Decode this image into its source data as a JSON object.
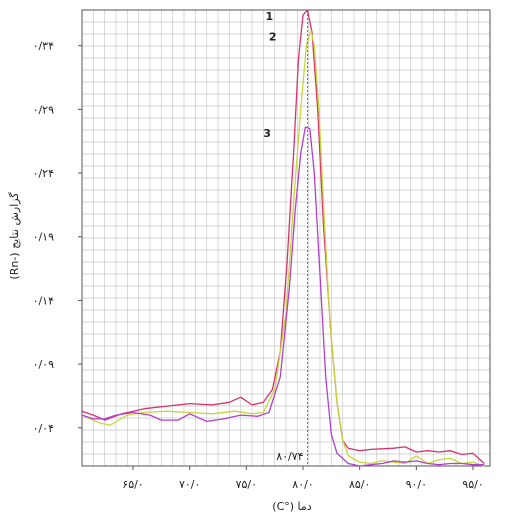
{
  "chart_data": {
    "type": "line",
    "xlabel": "دما (°C)",
    "ylabel": "گزارش نتایج (-Rn)",
    "xlim": [
      60.5,
      96.5
    ],
    "ylim": [
      0.01,
      0.368
    ],
    "grid": true,
    "x_ticks": [
      {
        "value": 65,
        "label": "۶۵/۰"
      },
      {
        "value": 70,
        "label": "۷۰/۰"
      },
      {
        "value": 75,
        "label": "۷۵/۰"
      },
      {
        "value": 80,
        "label": "۸۰/۰"
      },
      {
        "value": 85,
        "label": "۸۵/۰"
      },
      {
        "value": 90,
        "label": "۹۰/۰"
      },
      {
        "value": 95,
        "label": "۹۵/۰"
      }
    ],
    "y_ticks": [
      {
        "value": 0.04,
        "label": "۰/۰۴"
      },
      {
        "value": 0.09,
        "label": "۰/۰۹"
      },
      {
        "value": 0.14,
        "label": "۰/۱۴"
      },
      {
        "value": 0.19,
        "label": "۰/۱۹"
      },
      {
        "value": 0.24,
        "label": "۰/۲۴"
      },
      {
        "value": 0.29,
        "label": "۰/۲۹"
      },
      {
        "value": 0.34,
        "label": "۰/۳۴"
      }
    ],
    "peak_marker": {
      "x": 80.4,
      "label": "۸۰/۷۴"
    },
    "series": [
      {
        "label": "1",
        "color": "#d6336c",
        "x": [
          60.5,
          61.5,
          62.5,
          64,
          66,
          68,
          70,
          72,
          73.5,
          74.5,
          75.5,
          76.5,
          77.3,
          78,
          78.6,
          79.2,
          79.6,
          80,
          80.4,
          80.8,
          81.3,
          81.8,
          82.5,
          83,
          83.5,
          84,
          85,
          86,
          88,
          89,
          90,
          91,
          92,
          93,
          94,
          95,
          96
        ],
        "y": [
          0.053,
          0.05,
          0.046,
          0.051,
          0.055,
          0.057,
          0.059,
          0.058,
          0.06,
          0.064,
          0.058,
          0.06,
          0.07,
          0.1,
          0.17,
          0.26,
          0.33,
          0.364,
          0.368,
          0.35,
          0.29,
          0.2,
          0.11,
          0.06,
          0.03,
          0.024,
          0.022,
          0.023,
          0.024,
          0.025,
          0.021,
          0.022,
          0.021,
          0.022,
          0.019,
          0.02,
          0.012
        ]
      },
      {
        "label": "2",
        "color": "#c5d63c",
        "x": [
          60.5,
          62,
          63,
          64.5,
          66,
          68,
          70,
          72,
          74,
          75.5,
          76.5,
          77.5,
          78.5,
          79.2,
          79.8,
          80.3,
          80.7,
          81,
          81.4,
          81.9,
          82.4,
          83,
          83.5,
          84,
          85,
          86,
          87,
          88,
          89,
          90,
          91,
          92,
          93,
          94,
          95,
          96
        ],
        "y": [
          0.05,
          0.044,
          0.042,
          0.05,
          0.052,
          0.053,
          0.052,
          0.051,
          0.053,
          0.051,
          0.052,
          0.07,
          0.13,
          0.22,
          0.29,
          0.34,
          0.352,
          0.34,
          0.29,
          0.2,
          0.12,
          0.06,
          0.03,
          0.018,
          0.013,
          0.012,
          0.014,
          0.013,
          0.012,
          0.018,
          0.012,
          0.015,
          0.016,
          0.012,
          0.013,
          0.01
        ]
      },
      {
        "label": "3",
        "color": "#b040cc",
        "x": [
          60.5,
          61.5,
          62.5,
          63.5,
          65,
          66.5,
          67.5,
          69,
          70,
          71.5,
          73,
          74.5,
          76,
          77,
          78,
          78.8,
          79.3,
          79.8,
          80.2,
          80.6,
          81,
          81.5,
          82,
          82.5,
          83,
          84,
          85,
          86,
          87,
          88,
          89,
          90,
          91,
          92,
          93,
          94,
          95,
          96
        ],
        "y": [
          0.05,
          0.047,
          0.047,
          0.05,
          0.052,
          0.05,
          0.046,
          0.046,
          0.051,
          0.045,
          0.047,
          0.05,
          0.049,
          0.052,
          0.08,
          0.15,
          0.21,
          0.255,
          0.276,
          0.275,
          0.24,
          0.16,
          0.08,
          0.035,
          0.02,
          0.012,
          0.01,
          0.011,
          0.012,
          0.014,
          0.013,
          0.014,
          0.012,
          0.011,
          0.012,
          0.012,
          0.011,
          0.011
        ]
      }
    ]
  }
}
